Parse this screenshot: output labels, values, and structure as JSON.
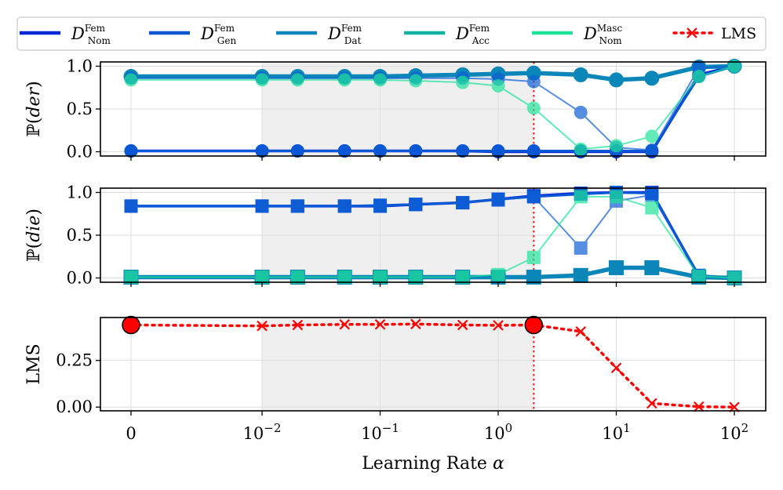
{
  "chart_data": [
    {
      "type": "line",
      "ylabel": "P(der)",
      "ylim": [
        -0.05,
        1.05
      ],
      "yticks": [
        0.0,
        0.5,
        1.0
      ],
      "ytick_labels": [
        "0.0",
        "0.5",
        "1.0"
      ],
      "marker": "circle",
      "x": [
        0,
        0.01,
        0.02,
        0.05,
        0.1,
        0.2,
        0.5,
        1,
        2,
        5,
        10,
        20,
        50,
        100
      ],
      "series": [
        {
          "name": "D_Nom^Fem",
          "color": "#0028d9",
          "width": 3.5,
          "opacity": 1.0,
          "values": [
            0.01,
            0.01,
            0.01,
            0.01,
            0.01,
            0.01,
            0.01,
            0.0,
            0.0,
            0.0,
            0.0,
            0.0,
            0.9,
            1.0
          ]
        },
        {
          "name": "D_Gen^Fem",
          "color": "#0a57d6",
          "width": 3,
          "opacity": 1.0,
          "values": [
            0.01,
            0.01,
            0.01,
            0.01,
            0.01,
            0.01,
            0.01,
            0.01,
            0.01,
            0.01,
            0.01,
            0.01,
            0.88,
            1.0
          ]
        },
        {
          "name": "D_Dat^Fem",
          "color": "#0a86b8",
          "width": 5.5,
          "opacity": 1.0,
          "values": [
            0.88,
            0.88,
            0.88,
            0.88,
            0.88,
            0.89,
            0.9,
            0.91,
            0.92,
            0.9,
            0.84,
            0.86,
            0.99,
            1.0
          ]
        },
        {
          "name": "D_Acc^Fem",
          "color": "#0f5fd6",
          "width": 2,
          "opacity": 0.7,
          "values": [
            0.86,
            0.86,
            0.86,
            0.86,
            0.86,
            0.86,
            0.86,
            0.85,
            0.82,
            0.46,
            0.05,
            0.02,
            0.98,
            1.0
          ]
        },
        {
          "name": "D_Nom^Masc",
          "color": "#1fe39a",
          "width": 2,
          "opacity": 0.7,
          "values": [
            0.84,
            0.84,
            0.84,
            0.84,
            0.84,
            0.83,
            0.81,
            0.77,
            0.51,
            0.03,
            0.07,
            0.18,
            0.88,
            1.0
          ]
        }
      ]
    },
    {
      "type": "line",
      "ylabel": "P(die)",
      "ylim": [
        -0.05,
        1.05
      ],
      "yticks": [
        0.0,
        0.5,
        1.0
      ],
      "ytick_labels": [
        "0.0",
        "0.5",
        "1.0"
      ],
      "marker": "square",
      "x": [
        0,
        0.01,
        0.02,
        0.05,
        0.1,
        0.2,
        0.5,
        1,
        2,
        5,
        10,
        20,
        50,
        100
      ],
      "series": [
        {
          "name": "D_Nom^Fem",
          "color": "#0028d9",
          "width": 3.5,
          "opacity": 1.0,
          "values": [
            0.84,
            0.84,
            0.84,
            0.84,
            0.84,
            0.86,
            0.88,
            0.92,
            0.96,
            0.99,
            1.0,
            1.0,
            0.02,
            0.0
          ]
        },
        {
          "name": "D_Gen^Fem",
          "color": "#0a57d6",
          "width": 3,
          "opacity": 1.0,
          "values": [
            0.84,
            0.84,
            0.84,
            0.84,
            0.85,
            0.86,
            0.88,
            0.92,
            0.95,
            0.98,
            1.0,
            0.99,
            0.03,
            0.0
          ]
        },
        {
          "name": "D_Dat^Fem",
          "color": "#0a86b8",
          "width": 5.5,
          "opacity": 1.0,
          "values": [
            0.01,
            0.01,
            0.01,
            0.01,
            0.01,
            0.01,
            0.01,
            0.01,
            0.01,
            0.03,
            0.12,
            0.12,
            0.01,
            0.0
          ]
        },
        {
          "name": "D_Acc^Fem",
          "color": "#0f5fd6",
          "width": 2,
          "opacity": 0.7,
          "values": [
            0.84,
            0.84,
            0.84,
            0.84,
            0.84,
            0.86,
            0.88,
            0.91,
            0.95,
            0.35,
            0.9,
            0.97,
            0.02,
            0.0
          ]
        },
        {
          "name": "D_Nom^Masc",
          "color": "#1fe39a",
          "width": 2,
          "opacity": 0.7,
          "values": [
            0.01,
            0.01,
            0.01,
            0.01,
            0.01,
            0.01,
            0.01,
            0.04,
            0.24,
            0.95,
            0.95,
            0.82,
            0.02,
            0.0
          ]
        }
      ]
    },
    {
      "type": "line",
      "ylabel": "LMS",
      "xlabel": "Learning Rate α",
      "ylim": [
        -0.02,
        0.48
      ],
      "yticks": [
        0.0,
        0.25
      ],
      "ytick_labels": [
        "0.00",
        "0.25"
      ],
      "marker": "x",
      "x": [
        0,
        0.01,
        0.02,
        0.05,
        0.1,
        0.2,
        0.5,
        1,
        2,
        5,
        10,
        20,
        50,
        100
      ],
      "series": [
        {
          "name": "LMS",
          "color": "#ff0000",
          "width": 3.5,
          "opacity": 1.0,
          "dash": "dotted",
          "values": [
            0.44,
            0.435,
            0.44,
            0.443,
            0.443,
            0.445,
            0.44,
            0.438,
            0.44,
            0.405,
            0.21,
            0.02,
            0.002,
            0.0
          ]
        }
      ],
      "highlight_points": [
        {
          "x": 0,
          "y": 0.44,
          "color": "#ff0000"
        },
        {
          "x": 2,
          "y": 0.44,
          "color": "#ff0000"
        }
      ]
    }
  ],
  "legend": [
    {
      "label": "D",
      "sup": "Fem",
      "sub": "Nom",
      "color": "#0028d9"
    },
    {
      "label": "D",
      "sup": "Fem",
      "sub": "Gen",
      "color": "#0a57d6"
    },
    {
      "label": "D",
      "sup": "Fem",
      "sub": "Dat",
      "color": "#0a86b8"
    },
    {
      "label": "D",
      "sup": "Fem",
      "sub": "Acc",
      "color": "#0fb3a0"
    },
    {
      "label": "D",
      "sup": "Masc",
      "sub": "Nom",
      "color": "#1fe39a"
    },
    {
      "label": "LMS",
      "color": "#ff0000"
    }
  ],
  "x_axis": {
    "label": "Learning Rate α",
    "ticks": [
      {
        "value": 0,
        "label": "0"
      },
      {
        "value": 0.01,
        "base": "10",
        "exp": "−2"
      },
      {
        "value": 0.1,
        "base": "10",
        "exp": "−1"
      },
      {
        "value": 1,
        "base": "10",
        "exp": "0"
      },
      {
        "value": 10,
        "base": "10",
        "exp": "1"
      },
      {
        "value": 100,
        "base": "10",
        "exp": "2"
      }
    ],
    "shaded_range": [
      0.01,
      2
    ],
    "vline": 2
  }
}
